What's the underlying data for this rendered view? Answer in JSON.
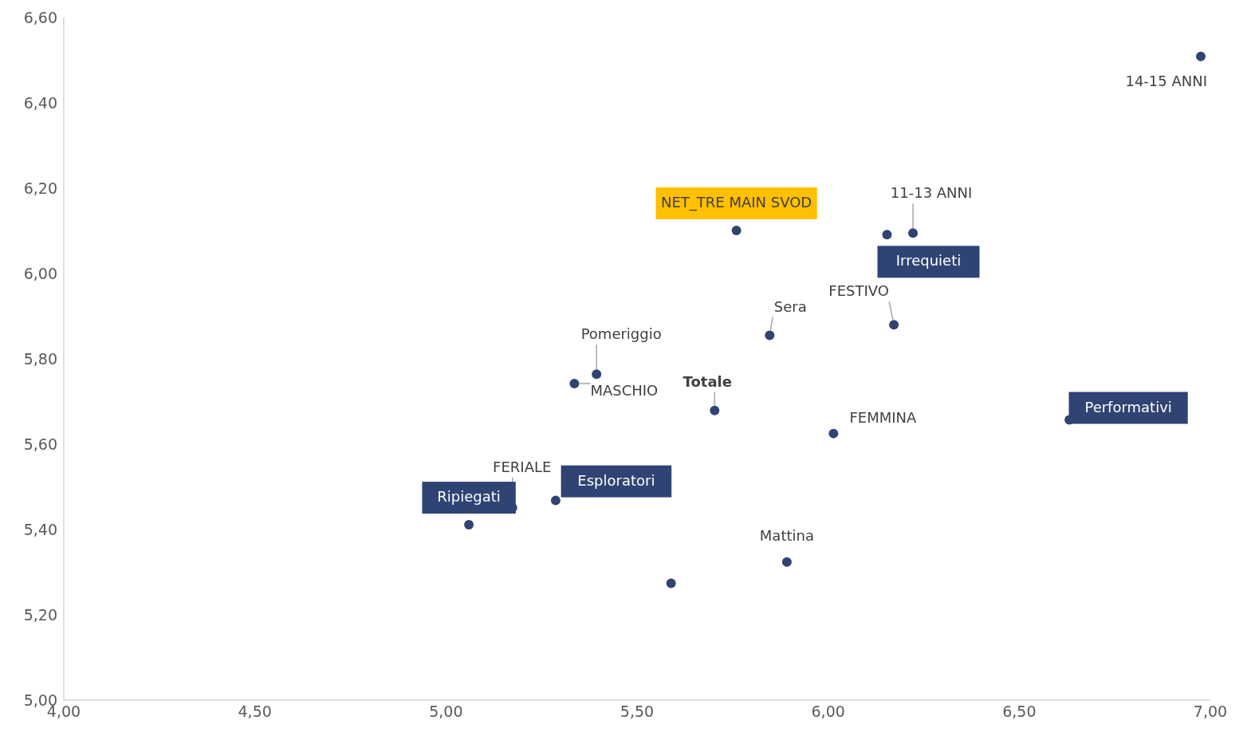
{
  "chart_data": {
    "type": "scatter",
    "marker": "circle",
    "grid": false,
    "legend": false,
    "series": [
      {
        "color": "#2f4473",
        "x": [
          6.975,
          5.76,
          6.154,
          6.222,
          6.172,
          5.847,
          5.394,
          5.336,
          5.703,
          6.014,
          6.631,
          5.287,
          5.174,
          5.06,
          5.892,
          5.589
        ],
        "values": [
          6.509,
          6.101,
          6.091,
          6.095,
          5.88,
          5.855,
          5.764,
          5.742,
          5.679,
          5.625,
          5.657,
          5.468,
          5.451,
          5.411,
          5.324,
          5.274
        ]
      }
    ],
    "xlim": [
      4,
      7
    ],
    "xticks": [
      {
        "value": 4,
        "label": "4,00"
      },
      {
        "value": 4.5,
        "label": "4,50"
      },
      {
        "value": 5,
        "label": "5,00"
      },
      {
        "value": 5.5,
        "label": "5,50"
      },
      {
        "value": 6,
        "label": "6,00"
      },
      {
        "value": 6.5,
        "label": "6,50"
      },
      {
        "value": 7,
        "label": "7,00"
      }
    ],
    "ylim": [
      5,
      6.6
    ],
    "yticks": [
      {
        "value": 5,
        "label": "5,00"
      },
      {
        "value": 5.2,
        "label": "5,20"
      },
      {
        "value": 5.4,
        "label": "5,40"
      },
      {
        "value": 5.6,
        "label": "5,60"
      },
      {
        "value": 5.8,
        "label": "5,80"
      },
      {
        "value": 6,
        "label": "6,00"
      },
      {
        "value": 6.2,
        "label": "6,20"
      },
      {
        "value": 6.4,
        "label": "6,40"
      },
      {
        "value": 6.6,
        "label": "6,60"
      }
    ],
    "annotations": [
      {
        "text": "14-15 ANNI",
        "x": 6.975,
        "y": 6.509
      },
      {
        "text": "NET_TRE MAIN SVOD",
        "x": 5.76,
        "y": 6.101
      },
      {
        "text": "Irrequieti",
        "x": 6.154,
        "y": 6.091
      },
      {
        "text": "11-13 ANNI",
        "x": 6.222,
        "y": 6.095
      },
      {
        "text": "FESTIVO",
        "x": 6.172,
        "y": 5.88
      },
      {
        "text": "Sera",
        "x": 5.847,
        "y": 5.855
      },
      {
        "text": "Pomeriggio",
        "x": 5.394,
        "y": 5.764
      },
      {
        "text": "MASCHIO",
        "x": 5.336,
        "y": 5.742
      },
      {
        "text": "Totale",
        "x": 5.703,
        "y": 5.679
      },
      {
        "text": "FEMMINA",
        "x": 6.014,
        "y": 5.625
      },
      {
        "text": "Performativi",
        "x": 6.631,
        "y": 5.657
      },
      {
        "text": "Esploratori",
        "x": 5.287,
        "y": 5.468
      },
      {
        "text": "FERIALE",
        "x": 5.174,
        "y": 5.451
      },
      {
        "text": "Ripiegati",
        "x": 5.06,
        "y": 5.411
      },
      {
        "text": "Mattina",
        "x": 5.892,
        "y": 5.324
      }
    ]
  }
}
